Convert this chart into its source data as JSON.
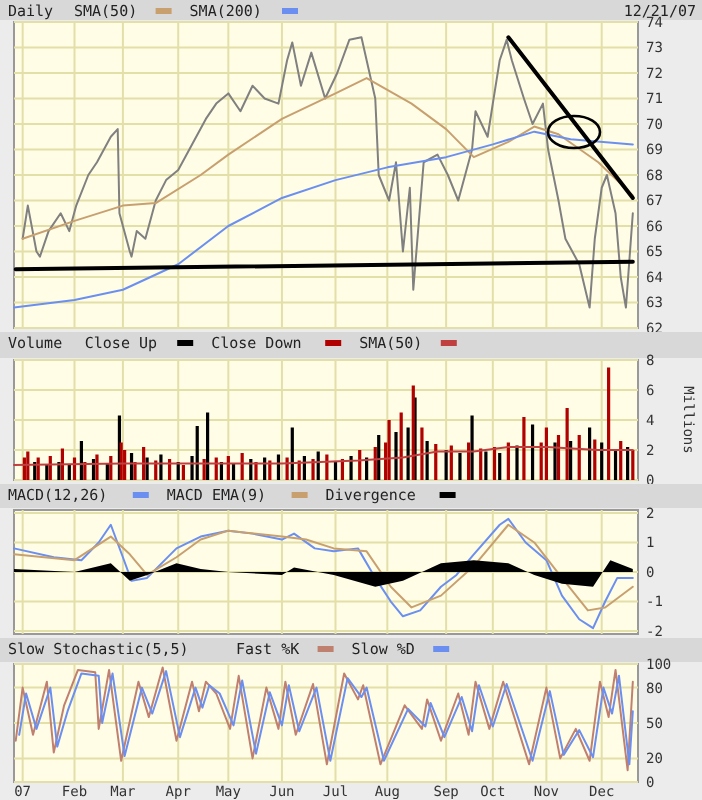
{
  "chart_data": [
    {
      "type": "line",
      "title": "Daily",
      "annotations": [
        "12/21/07"
      ],
      "legend": "top left",
      "grid": true,
      "tick_labels": "y",
      "xlim": [
        "2006-12-28",
        "2007-12-24"
      ],
      "xticks": [
        {
          "value": "2007-01-02",
          "label": null
        },
        {
          "value": "2007-02-01",
          "label": null
        },
        {
          "value": "2007-03-01",
          "label": null
        },
        {
          "value": "2007-04-02",
          "label": null
        },
        {
          "value": "2007-05-01",
          "label": null
        },
        {
          "value": "2007-06-01",
          "label": null
        },
        {
          "value": "2007-07-02",
          "label": null
        },
        {
          "value": "2007-08-01",
          "label": null
        },
        {
          "value": "2007-09-04",
          "label": null
        },
        {
          "value": "2007-10-01",
          "label": null
        },
        {
          "value": "2007-11-01",
          "label": null
        },
        {
          "value": "2007-12-03",
          "label": null
        }
      ],
      "ylim": [
        62,
        74
      ],
      "yticks": [
        62,
        63,
        64,
        65,
        66,
        67,
        68,
        69,
        70,
        71,
        72,
        73,
        74
      ],
      "series": [
        {
          "color": "#808080",
          "x": [
            "2007-01-02",
            "2007-01-05",
            "2007-01-10",
            "2007-01-12",
            "2007-01-17",
            "2007-01-24",
            "2007-01-29",
            "2007-02-02",
            "2007-02-09",
            "2007-02-14",
            "2007-02-22",
            "2007-02-26",
            "2007-02-27",
            "2007-03-05",
            "2007-03-06",
            "2007-03-09",
            "2007-03-14",
            "2007-03-20",
            "2007-03-26",
            "2007-04-02",
            "2007-04-10",
            "2007-04-18",
            "2007-04-24",
            "2007-05-01",
            "2007-05-08",
            "2007-05-15",
            "2007-05-22",
            "2007-05-30",
            "2007-06-04",
            "2007-06-07",
            "2007-06-12",
            "2007-06-18",
            "2007-06-26",
            "2007-07-03",
            "2007-07-10",
            "2007-07-17",
            "2007-07-20",
            "2007-07-25",
            "2007-07-27",
            "2007-08-02",
            "2007-08-06",
            "2007-08-10",
            "2007-08-14",
            "2007-08-16",
            "2007-08-22",
            "2007-08-30",
            "2007-09-05",
            "2007-09-11",
            "2007-09-19",
            "2007-09-21",
            "2007-09-28",
            "2007-10-01",
            "2007-10-05",
            "2007-10-09",
            "2007-10-12",
            "2007-10-19",
            "2007-10-24",
            "2007-10-30",
            "2007-11-02",
            "2007-11-08",
            "2007-11-12",
            "2007-11-20",
            "2007-11-26",
            "2007-11-29",
            "2007-12-03",
            "2007-12-06",
            "2007-12-11",
            "2007-12-14",
            "2007-12-17",
            "2007-12-21"
          ],
          "values": [
            65.5,
            66.8,
            65.0,
            64.8,
            65.8,
            66.5,
            65.8,
            66.8,
            68.0,
            68.5,
            69.5,
            69.8,
            66.5,
            65.0,
            64.8,
            65.8,
            65.5,
            67.0,
            67.8,
            68.2,
            69.2,
            70.2,
            70.8,
            71.2,
            70.5,
            71.5,
            71.0,
            70.8,
            72.5,
            73.2,
            71.5,
            72.8,
            71.0,
            72.0,
            73.3,
            73.4,
            72.5,
            71.0,
            68.0,
            67.0,
            68.5,
            65.0,
            67.5,
            63.5,
            68.5,
            68.8,
            68.0,
            67.0,
            69.0,
            70.5,
            69.5,
            70.8,
            72.5,
            73.3,
            72.5,
            71.0,
            70.0,
            70.8,
            69.0,
            67.0,
            65.5,
            64.5,
            62.8,
            65.5,
            67.5,
            68.0,
            66.5,
            64.0,
            62.8,
            66.5
          ]
        },
        {
          "name": "SMA(50)",
          "color": "#c8a070",
          "x": [
            "2007-01-02",
            "2007-02-01",
            "2007-03-01",
            "2007-03-20",
            "2007-04-15",
            "2007-05-01",
            "2007-06-01",
            "2007-07-02",
            "2007-07-20",
            "2007-08-15",
            "2007-09-04",
            "2007-09-20",
            "2007-10-10",
            "2007-10-25",
            "2007-11-08",
            "2007-12-01",
            "2007-12-21"
          ],
          "values": [
            65.5,
            66.2,
            66.8,
            66.9,
            68.0,
            68.8,
            70.2,
            71.2,
            71.8,
            70.8,
            69.8,
            68.7,
            69.3,
            69.9,
            69.6,
            68.5,
            67.2
          ]
        },
        {
          "name": "SMA(200)",
          "color": "#6b8ff0",
          "x": [
            "2006-12-28",
            "2007-02-01",
            "2007-03-01",
            "2007-04-02",
            "2007-05-01",
            "2007-06-01",
            "2007-07-02",
            "2007-08-01",
            "2007-09-04",
            "2007-10-01",
            "2007-10-25",
            "2007-11-15",
            "2007-12-21"
          ],
          "values": [
            62.8,
            63.1,
            63.5,
            64.5,
            66.0,
            67.1,
            67.8,
            68.3,
            68.7,
            69.2,
            69.7,
            69.4,
            69.2
          ]
        },
        {
          "color": "#000000",
          "x": [
            "2006-12-29",
            "2007-12-21"
          ],
          "values": [
            64.3,
            64.6
          ]
        },
        {
          "color": "#000000",
          "x": [
            "2007-10-10",
            "2007-12-21"
          ],
          "values": [
            73.4,
            67.1
          ]
        }
      ]
    },
    {
      "type": "bar",
      "title": "Volume",
      "ylabel": "Millions",
      "legend": "top left",
      "grid": true,
      "tick_labels": "y",
      "xlim": [
        "2006-12-28",
        "2007-12-24"
      ],
      "xticks": [
        {
          "value": "2007-01-02",
          "label": null
        },
        {
          "value": "2007-02-01",
          "label": null
        },
        {
          "value": "2007-03-01",
          "label": null
        },
        {
          "value": "2007-04-02",
          "label": null
        },
        {
          "value": "2007-05-01",
          "label": null
        },
        {
          "value": "2007-06-01",
          "label": null
        },
        {
          "value": "2007-07-02",
          "label": null
        },
        {
          "value": "2007-08-01",
          "label": null
        },
        {
          "value": "2007-09-04",
          "label": null
        },
        {
          "value": "2007-10-01",
          "label": null
        },
        {
          "value": "2007-11-01",
          "label": null
        },
        {
          "value": "2007-12-03",
          "label": null
        }
      ],
      "ylim": [
        0,
        8
      ],
      "yticks": [
        0,
        2,
        4,
        6,
        8
      ],
      "series": [
        {
          "name": "Close Up",
          "color": "#000000",
          "x": [
            "2007-01-09",
            "2007-01-16",
            "2007-01-23",
            "2007-01-29",
            "2007-02-05",
            "2007-02-12",
            "2007-02-20",
            "2007-02-27",
            "2007-03-06",
            "2007-03-15",
            "2007-03-23",
            "2007-04-02",
            "2007-04-10",
            "2007-04-13",
            "2007-04-19",
            "2007-04-27",
            "2007-05-04",
            "2007-05-14",
            "2007-05-22",
            "2007-05-30",
            "2007-06-07",
            "2007-06-14",
            "2007-06-22",
            "2007-07-02",
            "2007-07-11",
            "2007-07-20",
            "2007-07-27",
            "2007-08-06",
            "2007-08-13",
            "2007-08-17",
            "2007-08-24",
            "2007-09-04",
            "2007-09-12",
            "2007-09-19",
            "2007-09-27",
            "2007-10-05",
            "2007-10-15",
            "2007-10-24",
            "2007-11-06",
            "2007-11-15",
            "2007-11-26",
            "2007-12-03",
            "2007-12-11",
            "2007-12-18"
          ],
          "values": [
            1.2,
            1.0,
            1.2,
            1.0,
            2.6,
            1.4,
            1.1,
            4.3,
            1.8,
            1.5,
            1.7,
            1.2,
            1.6,
            3.6,
            4.5,
            1.2,
            1.1,
            1.4,
            1.5,
            1.7,
            3.5,
            1.6,
            1.9,
            1.2,
            1.6,
            1.5,
            3.0,
            3.2,
            3.5,
            5.5,
            2.6,
            2.0,
            1.8,
            4.3,
            1.9,
            1.8,
            2.3,
            3.7,
            2.5,
            2.6,
            3.5,
            2.5,
            2.0,
            2.2
          ]
        },
        {
          "name": "Close Down",
          "color": "#b00000",
          "x": [
            "2007-01-03",
            "2007-01-05",
            "2007-01-11",
            "2007-01-18",
            "2007-01-25",
            "2007-02-01",
            "2007-02-07",
            "2007-02-14",
            "2007-02-22",
            "2007-02-28",
            "2007-03-02",
            "2007-03-08",
            "2007-03-13",
            "2007-03-20",
            "2007-03-28",
            "2007-04-05",
            "2007-04-17",
            "2007-04-24",
            "2007-05-01",
            "2007-05-09",
            "2007-05-17",
            "2007-05-25",
            "2007-06-04",
            "2007-06-11",
            "2007-06-19",
            "2007-06-27",
            "2007-07-06",
            "2007-07-16",
            "2007-07-25",
            "2007-07-31",
            "2007-08-02",
            "2007-08-09",
            "2007-08-16",
            "2007-08-21",
            "2007-08-29",
            "2007-09-07",
            "2007-09-17",
            "2007-09-24",
            "2007-10-02",
            "2007-10-10",
            "2007-10-19",
            "2007-10-29",
            "2007-11-01",
            "2007-11-08",
            "2007-11-13",
            "2007-11-20",
            "2007-11-29",
            "2007-12-07",
            "2007-12-14",
            "2007-12-21"
          ],
          "values": [
            1.5,
            1.9,
            1.5,
            1.6,
            2.1,
            1.5,
            1.2,
            1.7,
            1.6,
            2.5,
            2.0,
            1.2,
            2.2,
            1.3,
            1.4,
            1.0,
            1.4,
            1.5,
            1.6,
            1.8,
            1.2,
            1.3,
            1.5,
            1.3,
            1.4,
            1.7,
            1.4,
            2.0,
            2.2,
            2.5,
            4.0,
            4.5,
            6.3,
            3.5,
            2.4,
            2.3,
            2.5,
            2.1,
            2.2,
            2.5,
            4.2,
            2.5,
            3.5,
            3.0,
            4.8,
            3.0,
            2.7,
            7.5,
            2.6,
            2.0
          ]
        },
        {
          "name": "SMA(50)",
          "type": "line",
          "color": "#c04040",
          "x": [
            "2006-12-28",
            "2007-03-01",
            "2007-06-01",
            "2007-07-15",
            "2007-08-10",
            "2007-08-30",
            "2007-09-20",
            "2007-10-10",
            "2007-11-01",
            "2007-12-01",
            "2007-12-21"
          ],
          "values": [
            1.0,
            1.1,
            1.1,
            1.3,
            1.5,
            1.9,
            1.9,
            2.2,
            2.2,
            2.0,
            2.0
          ]
        }
      ]
    },
    {
      "type": "line",
      "legend": "top left",
      "grid": true,
      "tick_labels": "y",
      "xlim": [
        "2006-12-28",
        "2007-12-24"
      ],
      "xticks": [
        {
          "value": "2007-01-02",
          "label": null
        },
        {
          "value": "2007-02-01",
          "label": null
        },
        {
          "value": "2007-03-01",
          "label": null
        },
        {
          "value": "2007-04-02",
          "label": null
        },
        {
          "value": "2007-05-01",
          "label": null
        },
        {
          "value": "2007-06-01",
          "label": null
        },
        {
          "value": "2007-07-02",
          "label": null
        },
        {
          "value": "2007-08-01",
          "label": null
        },
        {
          "value": "2007-09-04",
          "label": null
        },
        {
          "value": "2007-10-01",
          "label": null
        },
        {
          "value": "2007-11-01",
          "label": null
        },
        {
          "value": "2007-12-03",
          "label": null
        }
      ],
      "ylim": [
        -2.1,
        2.1
      ],
      "yticks": [
        -2,
        -1,
        0,
        1,
        2
      ],
      "series": [
        {
          "name": "MACD(12,26)",
          "color": "#6b8ff0",
          "x": [
            "2006-12-28",
            "2007-01-20",
            "2007-02-05",
            "2007-02-15",
            "2007-02-22",
            "2007-03-01",
            "2007-03-06",
            "2007-03-15",
            "2007-04-01",
            "2007-04-15",
            "2007-05-01",
            "2007-05-15",
            "2007-06-01",
            "2007-06-08",
            "2007-06-20",
            "2007-07-01",
            "2007-07-15",
            "2007-07-25",
            "2007-08-03",
            "2007-08-10",
            "2007-08-20",
            "2007-09-01",
            "2007-09-10",
            "2007-09-20",
            "2007-10-05",
            "2007-10-10",
            "2007-10-20",
            "2007-11-01",
            "2007-11-10",
            "2007-11-20",
            "2007-11-28",
            "2007-12-05",
            "2007-12-12",
            "2007-12-21"
          ],
          "values": [
            0.8,
            0.5,
            0.4,
            1.0,
            1.6,
            0.5,
            -0.3,
            -0.2,
            0.8,
            1.2,
            1.4,
            1.3,
            1.1,
            1.3,
            0.8,
            0.7,
            0.8,
            -0.2,
            -1.0,
            -1.5,
            -1.3,
            -0.5,
            -0.1,
            0.6,
            1.6,
            1.8,
            1.0,
            0.4,
            -0.8,
            -1.6,
            -1.9,
            -1.0,
            -0.2,
            -0.2
          ]
        },
        {
          "name": "MACD EMA(9)",
          "color": "#c8a070",
          "x": [
            "2006-12-28",
            "2007-02-01",
            "2007-02-22",
            "2007-03-05",
            "2007-03-15",
            "2007-04-01",
            "2007-04-15",
            "2007-05-01",
            "2007-06-01",
            "2007-06-15",
            "2007-07-01",
            "2007-07-20",
            "2007-08-03",
            "2007-08-15",
            "2007-09-01",
            "2007-09-20",
            "2007-10-10",
            "2007-10-25",
            "2007-11-10",
            "2007-11-25",
            "2007-12-05",
            "2007-12-21"
          ],
          "values": [
            0.6,
            0.4,
            1.2,
            0.6,
            -0.1,
            0.5,
            1.1,
            1.4,
            1.2,
            1.1,
            0.8,
            0.7,
            -0.5,
            -1.2,
            -0.8,
            0.2,
            1.6,
            1.0,
            -0.2,
            -1.3,
            -1.2,
            -0.5
          ]
        },
        {
          "name": "Divergence",
          "type": "area",
          "color": "#000000",
          "x": [
            "2006-12-28",
            "2007-02-01",
            "2007-02-22",
            "2007-03-05",
            "2007-03-15",
            "2007-04-01",
            "2007-04-15",
            "2007-05-01",
            "2007-06-01",
            "2007-06-08",
            "2007-07-01",
            "2007-07-25",
            "2007-08-10",
            "2007-09-01",
            "2007-09-20",
            "2007-10-10",
            "2007-10-25",
            "2007-11-10",
            "2007-11-28",
            "2007-12-08",
            "2007-12-21"
          ],
          "values": [
            0.1,
            0.0,
            0.3,
            -0.3,
            -0.1,
            0.3,
            0.1,
            0.0,
            -0.1,
            0.15,
            -0.1,
            -0.5,
            -0.3,
            0.3,
            0.4,
            0.3,
            -0.1,
            -0.4,
            -0.5,
            0.4,
            0.1
          ]
        }
      ]
    },
    {
      "type": "line",
      "title": "Slow Stochastic(5,5)",
      "legend": "top left",
      "grid": true,
      "xlim": [
        "2006-12-28",
        "2007-12-24"
      ],
      "xticks": [
        {
          "value": "2007-01-02",
          "label": "07"
        },
        {
          "value": "2007-02-01",
          "label": "Feb"
        },
        {
          "value": "2007-03-01",
          "label": "Mar"
        },
        {
          "value": "2007-04-02",
          "label": "Apr"
        },
        {
          "value": "2007-05-01",
          "label": "May"
        },
        {
          "value": "2007-06-01",
          "label": "Jun"
        },
        {
          "value": "2007-07-02",
          "label": "Jul"
        },
        {
          "value": "2007-08-01",
          "label": "Aug"
        },
        {
          "value": "2007-09-04",
          "label": "Sep"
        },
        {
          "value": "2007-10-01",
          "label": "Oct"
        },
        {
          "value": "2007-11-01",
          "label": "Nov"
        },
        {
          "value": "2007-12-03",
          "label": "Dec"
        }
      ],
      "ylim": [
        0,
        100
      ],
      "yticks": [
        0,
        20,
        50,
        80,
        100
      ],
      "series": [
        {
          "name": "Fast %K",
          "color": "#c08070",
          "x": [
            "2006-12-29",
            "2007-01-02",
            "2007-01-08",
            "2007-01-16",
            "2007-01-20",
            "2007-01-26",
            "2007-02-03",
            "2007-02-13",
            "2007-02-15",
            "2007-02-21",
            "2007-02-28",
            "2007-03-10",
            "2007-03-16",
            "2007-03-24",
            "2007-04-01",
            "2007-04-10",
            "2007-04-14",
            "2007-04-18",
            "2007-04-24",
            "2007-05-02",
            "2007-05-07",
            "2007-05-15",
            "2007-05-23",
            "2007-05-30",
            "2007-06-03",
            "2007-06-09",
            "2007-06-19",
            "2007-06-27",
            "2007-07-07",
            "2007-07-15",
            "2007-07-18",
            "2007-07-28",
            "2007-08-11",
            "2007-08-21",
            "2007-08-24",
            "2007-09-01",
            "2007-09-11",
            "2007-09-17",
            "2007-09-21",
            "2007-09-29",
            "2007-10-07",
            "2007-10-22",
            "2007-11-01",
            "2007-11-09",
            "2007-11-18",
            "2007-11-26",
            "2007-12-02",
            "2007-12-07",
            "2007-12-11",
            "2007-12-18",
            "2007-12-21"
          ],
          "values": [
            35,
            80,
            40,
            85,
            25,
            65,
            95,
            93,
            45,
            95,
            18,
            85,
            55,
            97,
            35,
            85,
            60,
            85,
            75,
            45,
            90,
            20,
            80,
            45,
            85,
            40,
            83,
            15,
            92,
            70,
            82,
            15,
            65,
            45,
            70,
            35,
            75,
            40,
            85,
            45,
            85,
            15,
            80,
            20,
            45,
            18,
            85,
            55,
            95,
            10,
            85
          ]
        },
        {
          "name": "Slow %D",
          "color": "#6b8ff0",
          "x": [
            "2006-12-31",
            "2007-01-04",
            "2007-01-10",
            "2007-01-18",
            "2007-01-22",
            "2007-01-28",
            "2007-02-05",
            "2007-02-15",
            "2007-02-17",
            "2007-02-23",
            "2007-03-02",
            "2007-03-12",
            "2007-03-18",
            "2007-03-26",
            "2007-04-03",
            "2007-04-12",
            "2007-04-16",
            "2007-04-20",
            "2007-04-26",
            "2007-05-04",
            "2007-05-09",
            "2007-05-17",
            "2007-05-25",
            "2007-06-01",
            "2007-06-05",
            "2007-06-11",
            "2007-06-21",
            "2007-06-29",
            "2007-07-09",
            "2007-07-17",
            "2007-07-20",
            "2007-07-30",
            "2007-08-13",
            "2007-08-23",
            "2007-08-26",
            "2007-09-03",
            "2007-09-13",
            "2007-09-19",
            "2007-09-23",
            "2007-10-01",
            "2007-10-09",
            "2007-10-24",
            "2007-11-03",
            "2007-11-11",
            "2007-11-20",
            "2007-11-28",
            "2007-12-04",
            "2007-12-09",
            "2007-12-13",
            "2007-12-19",
            "2007-12-21"
          ],
          "values": [
            40,
            75,
            45,
            80,
            30,
            60,
            92,
            90,
            50,
            92,
            22,
            80,
            58,
            94,
            38,
            80,
            63,
            82,
            75,
            48,
            86,
            24,
            76,
            48,
            82,
            43,
            80,
            18,
            88,
            72,
            80,
            18,
            62,
            47,
            67,
            38,
            72,
            43,
            82,
            47,
            83,
            18,
            77,
            23,
            44,
            21,
            80,
            58,
            90,
            15,
            60
          ]
        }
      ]
    }
  ]
}
